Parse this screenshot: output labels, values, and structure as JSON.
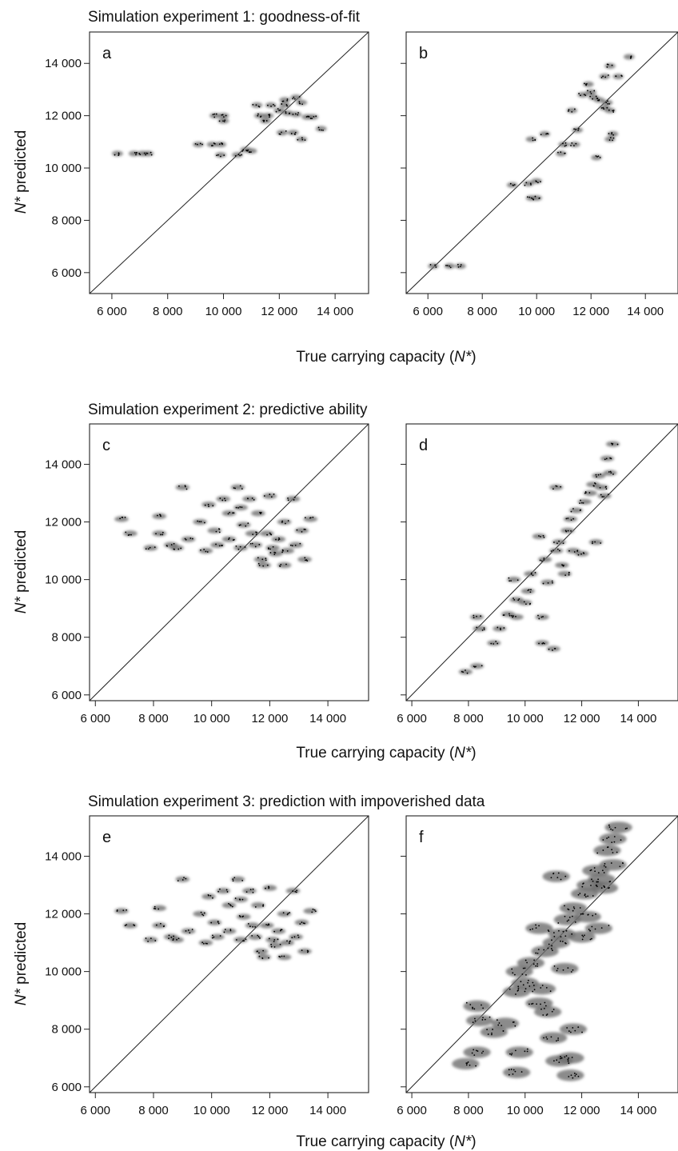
{
  "figure": {
    "section_titles": [
      "Simulation experiment 1: goodness-of-fit",
      "Simulation experiment 2: predictive ability",
      "Simulation experiment 3: prediction with impoverished data"
    ],
    "ylabel_italic": "N*",
    "ylabel_rest": " predicted",
    "xlabel_prefix": "True carrying capacity (",
    "xlabel_italic": "N*",
    "xlabel_suffix": ")"
  },
  "chart_data": [
    {
      "type": "scatter",
      "panel": "a",
      "xlim": [
        5200,
        15200
      ],
      "ylim": [
        5200,
        15200
      ],
      "xticks": [
        6000,
        8000,
        10000,
        12000,
        14000
      ],
      "yticks": [
        6000,
        8000,
        10000,
        12000,
        14000
      ],
      "xtick_labels": [
        "6 000",
        "8 000",
        "10 000",
        "12 000",
        "14 000"
      ],
      "ytick_labels": [
        "6 000",
        "8 000",
        "10 000",
        "12 000",
        "14 000"
      ],
      "identity_line": true,
      "show_ylabel": true,
      "show_xlabel": true,
      "spread": 90,
      "points": [
        [
          6200,
          10550
        ],
        [
          6800,
          10550
        ],
        [
          7100,
          10550
        ],
        [
          7300,
          10550
        ],
        [
          9100,
          10900
        ],
        [
          9600,
          10900
        ],
        [
          9900,
          10900
        ],
        [
          9700,
          12000
        ],
        [
          10000,
          12000
        ],
        [
          10000,
          11800
        ],
        [
          9900,
          10500
        ],
        [
          10500,
          10500
        ],
        [
          10800,
          10700
        ],
        [
          11000,
          10650
        ],
        [
          11200,
          12400
        ],
        [
          11300,
          12000
        ],
        [
          11600,
          12000
        ],
        [
          11500,
          11800
        ],
        [
          11700,
          12400
        ],
        [
          12000,
          12200
        ],
        [
          12200,
          12400
        ],
        [
          12600,
          12700
        ],
        [
          12800,
          12500
        ],
        [
          12300,
          12100
        ],
        [
          12600,
          12050
        ],
        [
          13000,
          11950
        ],
        [
          13200,
          11950
        ],
        [
          12100,
          11350
        ],
        [
          12500,
          11350
        ],
        [
          12800,
          11100
        ],
        [
          13500,
          11500
        ],
        [
          12200,
          12600
        ]
      ]
    },
    {
      "type": "scatter",
      "panel": "b",
      "xlim": [
        5200,
        15200
      ],
      "ylim": [
        5200,
        15200
      ],
      "xticks": [
        6000,
        8000,
        10000,
        12000,
        14000
      ],
      "yticks": [
        6000,
        8000,
        10000,
        12000,
        14000
      ],
      "xtick_labels": [
        "6 000",
        "8 000",
        "10 000",
        "12 000",
        "14 000"
      ],
      "ytick_labels": [],
      "identity_line": true,
      "show_ylabel": false,
      "show_xlabel": false,
      "spread": 90,
      "points": [
        [
          6200,
          6250
        ],
        [
          6800,
          6250
        ],
        [
          7200,
          6250
        ],
        [
          9100,
          9350
        ],
        [
          9700,
          9400
        ],
        [
          10000,
          9500
        ],
        [
          9800,
          8850
        ],
        [
          10000,
          8850
        ],
        [
          9800,
          11100
        ],
        [
          10300,
          11300
        ],
        [
          10900,
          10550
        ],
        [
          11000,
          10900
        ],
        [
          11400,
          10900
        ],
        [
          11500,
          11450
        ],
        [
          11300,
          12200
        ],
        [
          11700,
          12800
        ],
        [
          11900,
          13200
        ],
        [
          12000,
          12900
        ],
        [
          12100,
          12700
        ],
        [
          12300,
          12600
        ],
        [
          12600,
          12500
        ],
        [
          12500,
          12300
        ],
        [
          12700,
          12200
        ],
        [
          12500,
          13500
        ],
        [
          12700,
          13900
        ],
        [
          13000,
          13500
        ],
        [
          13400,
          14250
        ],
        [
          12200,
          10400
        ],
        [
          12700,
          11100
        ],
        [
          12800,
          11300
        ]
      ]
    },
    {
      "type": "scatter",
      "panel": "c",
      "xlim": [
        5800,
        15400
      ],
      "ylim": [
        5800,
        15400
      ],
      "xticks": [
        6000,
        8000,
        10000,
        12000,
        14000
      ],
      "yticks": [
        6000,
        8000,
        10000,
        12000,
        14000
      ],
      "xtick_labels": [
        "6 000",
        "8 000",
        "10 000",
        "12 000",
        "14 000"
      ],
      "ytick_labels": [
        "6 000",
        "8 000",
        "10 000",
        "12 000",
        "14 000"
      ],
      "identity_line": true,
      "show_ylabel": true,
      "show_xlabel": false,
      "spread": 110,
      "points": [
        [
          6900,
          12100
        ],
        [
          7200,
          11600
        ],
        [
          7900,
          11100
        ],
        [
          8200,
          12200
        ],
        [
          8200,
          11600
        ],
        [
          8600,
          11200
        ],
        [
          8800,
          11100
        ],
        [
          9000,
          13200
        ],
        [
          9200,
          11400
        ],
        [
          9600,
          12000
        ],
        [
          9800,
          11000
        ],
        [
          9900,
          12600
        ],
        [
          10100,
          11700
        ],
        [
          10200,
          11200
        ],
        [
          10400,
          12800
        ],
        [
          10600,
          11400
        ],
        [
          10900,
          13200
        ],
        [
          11000,
          12500
        ],
        [
          11100,
          11900
        ],
        [
          11300,
          12800
        ],
        [
          11400,
          11600
        ],
        [
          11500,
          11200
        ],
        [
          11600,
          12300
        ],
        [
          11700,
          10700
        ],
        [
          11900,
          11600
        ],
        [
          12000,
          12900
        ],
        [
          12100,
          11100
        ],
        [
          12200,
          10900
        ],
        [
          12300,
          11400
        ],
        [
          12500,
          12000
        ],
        [
          12600,
          11000
        ],
        [
          12800,
          12800
        ],
        [
          12900,
          11200
        ],
        [
          13100,
          11700
        ],
        [
          13200,
          10700
        ],
        [
          13400,
          12100
        ],
        [
          11800,
          10500
        ],
        [
          12500,
          10500
        ],
        [
          11000,
          11100
        ],
        [
          10600,
          12300
        ]
      ]
    },
    {
      "type": "scatter",
      "panel": "d",
      "xlim": [
        5800,
        15400
      ],
      "ylim": [
        5800,
        15400
      ],
      "xticks": [
        6000,
        8000,
        10000,
        12000,
        14000
      ],
      "yticks": [
        6000,
        8000,
        10000,
        12000,
        14000
      ],
      "xtick_labels": [
        "6 000",
        "8 000",
        "10 000",
        "12 000",
        "14 000"
      ],
      "ytick_labels": [],
      "identity_line": true,
      "show_ylabel": false,
      "show_xlabel": true,
      "spread": 110,
      "points": [
        [
          7900,
          6800
        ],
        [
          8300,
          7000
        ],
        [
          8300,
          8700
        ],
        [
          8400,
          8300
        ],
        [
          8900,
          7800
        ],
        [
          9100,
          8300
        ],
        [
          9400,
          8800
        ],
        [
          9700,
          8700
        ],
        [
          9700,
          9300
        ],
        [
          9600,
          10000
        ],
        [
          10000,
          9200
        ],
        [
          10100,
          9600
        ],
        [
          10200,
          10200
        ],
        [
          10500,
          11500
        ],
        [
          10700,
          10700
        ],
        [
          10800,
          9900
        ],
        [
          10600,
          8700
        ],
        [
          10600,
          7800
        ],
        [
          11000,
          7600
        ],
        [
          11100,
          11000
        ],
        [
          11200,
          11300
        ],
        [
          11300,
          10500
        ],
        [
          11100,
          13200
        ],
        [
          11500,
          11700
        ],
        [
          11600,
          12100
        ],
        [
          11800,
          12400
        ],
        [
          11700,
          11000
        ],
        [
          12000,
          10900
        ],
        [
          12100,
          12700
        ],
        [
          12300,
          13000
        ],
        [
          12400,
          13300
        ],
        [
          12600,
          13600
        ],
        [
          12700,
          13200
        ],
        [
          12900,
          14200
        ],
        [
          12800,
          12900
        ],
        [
          13000,
          13700
        ],
        [
          13100,
          14700
        ],
        [
          12500,
          11300
        ],
        [
          11400,
          10200
        ]
      ]
    },
    {
      "type": "scatter",
      "panel": "e",
      "xlim": [
        5800,
        15400
      ],
      "ylim": [
        5800,
        15400
      ],
      "xticks": [
        6000,
        8000,
        10000,
        12000,
        14000
      ],
      "yticks": [
        6000,
        8000,
        10000,
        12000,
        14000
      ],
      "xtick_labels": [
        "6 000",
        "8 000",
        "10 000",
        "12 000",
        "14 000"
      ],
      "ytick_labels": [
        "6 000",
        "8 000",
        "10 000",
        "12 000",
        "14 000"
      ],
      "identity_line": true,
      "show_ylabel": true,
      "show_xlabel": false,
      "spread": 110,
      "points": [
        [
          6900,
          12100
        ],
        [
          7200,
          11600
        ],
        [
          7900,
          11100
        ],
        [
          8200,
          12200
        ],
        [
          8200,
          11600
        ],
        [
          8600,
          11200
        ],
        [
          8800,
          11100
        ],
        [
          9000,
          13200
        ],
        [
          9200,
          11400
        ],
        [
          9600,
          12000
        ],
        [
          9800,
          11000
        ],
        [
          9900,
          12600
        ],
        [
          10100,
          11700
        ],
        [
          10200,
          11200
        ],
        [
          10400,
          12800
        ],
        [
          10600,
          11400
        ],
        [
          10900,
          13200
        ],
        [
          11000,
          12500
        ],
        [
          11100,
          11900
        ],
        [
          11300,
          12800
        ],
        [
          11400,
          11600
        ],
        [
          11500,
          11200
        ],
        [
          11600,
          12300
        ],
        [
          11700,
          10700
        ],
        [
          11900,
          11600
        ],
        [
          12000,
          12900
        ],
        [
          12100,
          11100
        ],
        [
          12200,
          10900
        ],
        [
          12300,
          11400
        ],
        [
          12500,
          12000
        ],
        [
          12600,
          11000
        ],
        [
          12800,
          12800
        ],
        [
          12900,
          11200
        ],
        [
          13100,
          11700
        ],
        [
          13200,
          10700
        ],
        [
          13400,
          12100
        ],
        [
          11800,
          10500
        ],
        [
          12500,
          10500
        ],
        [
          11000,
          11100
        ],
        [
          10600,
          12300
        ]
      ]
    },
    {
      "type": "scatter",
      "panel": "f",
      "xlim": [
        5800,
        15400
      ],
      "ylim": [
        5800,
        15400
      ],
      "xticks": [
        6000,
        8000,
        10000,
        12000,
        14000
      ],
      "yticks": [
        6000,
        8000,
        10000,
        12000,
        14000
      ],
      "xtick_labels": [
        "6 000",
        "8 000",
        "10 000",
        "12 000",
        "14 000"
      ],
      "ytick_labels": [],
      "identity_line": true,
      "show_ylabel": false,
      "show_xlabel": true,
      "spread": 220,
      "points": [
        [
          7900,
          6800
        ],
        [
          8300,
          8800
        ],
        [
          8300,
          7200
        ],
        [
          8400,
          8300
        ],
        [
          8900,
          7900
        ],
        [
          9300,
          8200
        ],
        [
          9700,
          6500
        ],
        [
          9800,
          7200
        ],
        [
          9700,
          9300
        ],
        [
          9800,
          10000
        ],
        [
          10000,
          9600
        ],
        [
          10200,
          10300
        ],
        [
          10500,
          11500
        ],
        [
          10700,
          10700
        ],
        [
          10800,
          8600
        ],
        [
          10600,
          9400
        ],
        [
          11000,
          7700
        ],
        [
          11200,
          6900
        ],
        [
          11100,
          11000
        ],
        [
          11300,
          11300
        ],
        [
          11100,
          13300
        ],
        [
          11500,
          11800
        ],
        [
          11700,
          12200
        ],
        [
          11600,
          7000
        ],
        [
          11700,
          8000
        ],
        [
          12000,
          11200
        ],
        [
          12100,
          12700
        ],
        [
          12300,
          13000
        ],
        [
          12500,
          13500
        ],
        [
          12700,
          13200
        ],
        [
          12900,
          14200
        ],
        [
          12800,
          12900
        ],
        [
          13100,
          13700
        ],
        [
          13100,
          14600
        ],
        [
          13300,
          15000
        ],
        [
          12600,
          11500
        ],
        [
          11400,
          10100
        ],
        [
          11600,
          6400
        ],
        [
          10500,
          8900
        ],
        [
          12200,
          11900
        ]
      ]
    }
  ]
}
